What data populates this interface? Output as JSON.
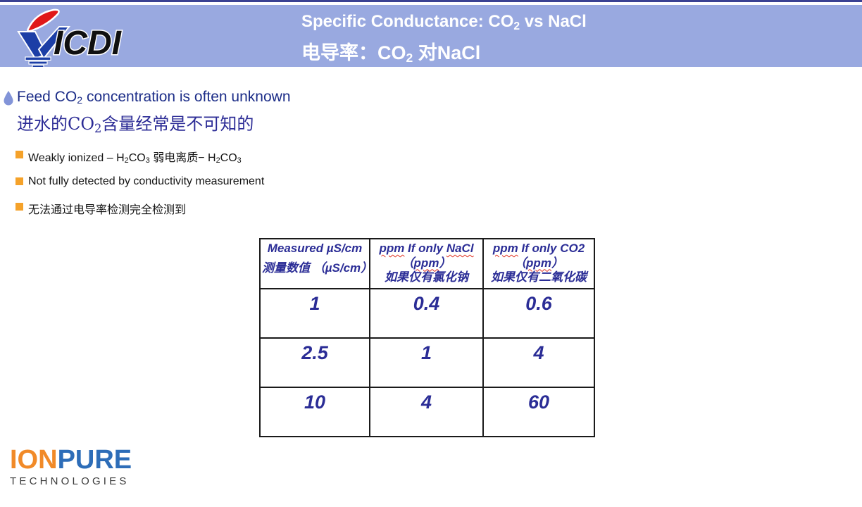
{
  "colors": {
    "header_bg": "#99a9e0",
    "top_line": "#3a4192",
    "title_text": "#ffffff",
    "main_bullet_text": "#1c2d88",
    "main_bullet_zh_text": "#2c2c96",
    "droplet_bullet": "#8294d8",
    "sub_bullet_square": "#f5a22a",
    "sub_bullet_text": "#141414",
    "table_text": "#2b2d96",
    "table_border": "#1a1a1a",
    "spellcheck_wavy": "#e03020",
    "logo_v_blue": "#1c3ea6",
    "logo_flame_red": "#e01818",
    "logo_ion_orange": "#f18a28",
    "logo_pure_blue": "#2d6db8",
    "logo_tech_gray": "#3a3a3a"
  },
  "header": {
    "logo_brand": "ICDI",
    "title_en": [
      {
        "v": "Specific Conductance: CO"
      },
      {
        "v": "2",
        "sub": true
      },
      {
        "v": " vs NaCl"
      }
    ],
    "title_zh": [
      {
        "v": "电导率：CO"
      },
      {
        "v": "2",
        "sub": true
      },
      {
        "v": " 对NaCl"
      }
    ]
  },
  "bullets": {
    "main_en": [
      {
        "v": "Feed CO"
      },
      {
        "v": "2",
        "sub": true
      },
      {
        "v": " concentration is often unknown"
      }
    ],
    "main_zh": [
      {
        "v": "进水的CO"
      },
      {
        "v": "2",
        "sub": true
      },
      {
        "v": "含量经常是不可知的"
      }
    ],
    "items": [
      [
        {
          "v": "Weakly ionized – H"
        },
        {
          "v": "2",
          "sub": true
        },
        {
          "v": "CO"
        },
        {
          "v": "3",
          "sub": true
        },
        {
          "v": " 弱电离质− H"
        },
        {
          "v": "2",
          "sub": true
        },
        {
          "v": "CO"
        },
        {
          "v": "3",
          "sub": true
        }
      ],
      [
        {
          "v": "Not fully detected by conductivity measurement"
        }
      ],
      [
        {
          "v": "无法通过电导率检测完全检测到"
        }
      ]
    ]
  },
  "table": {
    "columns": [
      {
        "lines": [
          [
            {
              "v": "Measured µS/cm"
            }
          ],
          [
            {
              "v": "测量数值 （µS/cm）"
            }
          ]
        ]
      },
      {
        "lines": [
          [
            {
              "v": "ppm",
              "wavy": true
            },
            {
              "v": " If only "
            },
            {
              "v": "NaCl",
              "wavy": true
            }
          ],
          [
            {
              "v": "（"
            },
            {
              "v": "ppm",
              "wavy": true
            },
            {
              "v": "）"
            }
          ],
          [
            {
              "v": "如果仅有氯化钠"
            }
          ]
        ]
      },
      {
        "lines": [
          [
            {
              "v": "ppm",
              "wavy": true
            },
            {
              "v": " If only CO2"
            }
          ],
          [
            {
              "v": "（"
            },
            {
              "v": "ppm",
              "wavy": true
            },
            {
              "v": "）"
            }
          ],
          [
            {
              "v": "如果仅有二氧化碳"
            }
          ]
        ]
      }
    ],
    "rows": [
      [
        "1",
        "0.4",
        "0.6"
      ],
      [
        "2.5",
        "1",
        "4"
      ],
      [
        "10",
        "4",
        "60"
      ]
    ]
  },
  "footer": {
    "ion": "ION",
    "pure": "PURE",
    "tech": "TECHNOLOGIES"
  }
}
